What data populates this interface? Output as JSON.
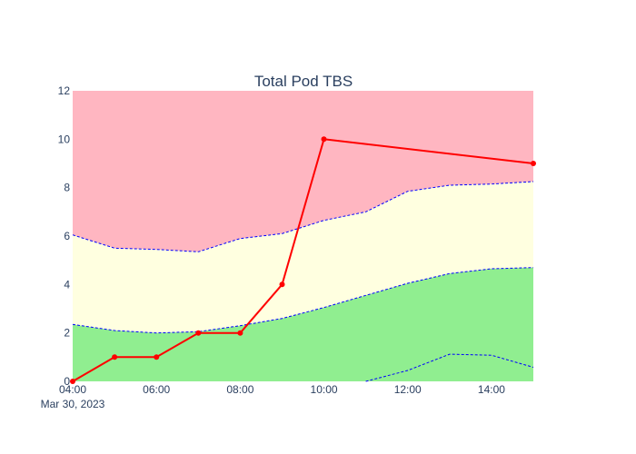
{
  "chart_data": {
    "type": "line",
    "title": "Total Pod TBS",
    "date_label": "Mar 30, 2023",
    "xlabel": "",
    "ylabel": "",
    "x_hours": [
      4,
      5,
      6,
      7,
      8,
      9,
      10,
      11,
      12,
      13,
      14,
      15
    ],
    "x_ticks": [
      {
        "hour": 4,
        "label": "04:00"
      },
      {
        "hour": 6,
        "label": "06:00"
      },
      {
        "hour": 8,
        "label": "08:00"
      },
      {
        "hour": 10,
        "label": "10:00"
      },
      {
        "hour": 12,
        "label": "12:00"
      },
      {
        "hour": 14,
        "label": "14:00"
      }
    ],
    "xlim": [
      4,
      15
    ],
    "ylim": [
      0,
      12
    ],
    "y_ticks": [
      0,
      2,
      4,
      6,
      8,
      10,
      12
    ],
    "bands": [
      {
        "name": "critical-band",
        "color": "#ffb6c1"
      },
      {
        "name": "warning-band",
        "color": "#ffffe0"
      },
      {
        "name": "normal-band",
        "color": "#90ee90"
      }
    ],
    "thresholds": {
      "upper": [
        6.05,
        5.5,
        5.45,
        5.35,
        5.9,
        6.1,
        6.65,
        7.0,
        7.85,
        8.1,
        8.15,
        8.25
      ],
      "lower": [
        2.35,
        2.1,
        2.0,
        2.05,
        2.3,
        2.6,
        3.05,
        3.55,
        4.05,
        4.45,
        4.65,
        4.7
      ],
      "baseline": {
        "x_hours": [
          11,
          12,
          13,
          14,
          15
        ],
        "values": [
          0.0,
          0.45,
          1.12,
          1.08,
          0.58
        ]
      },
      "line_color": "#0000ff"
    },
    "series": [
      {
        "name": "Total Pod TBS",
        "color": "#ff0000",
        "x_hours": [
          4,
          5,
          6,
          7,
          8,
          9,
          10,
          15
        ],
        "values": [
          0,
          1,
          1,
          2,
          2,
          4,
          10,
          9
        ]
      }
    ]
  }
}
